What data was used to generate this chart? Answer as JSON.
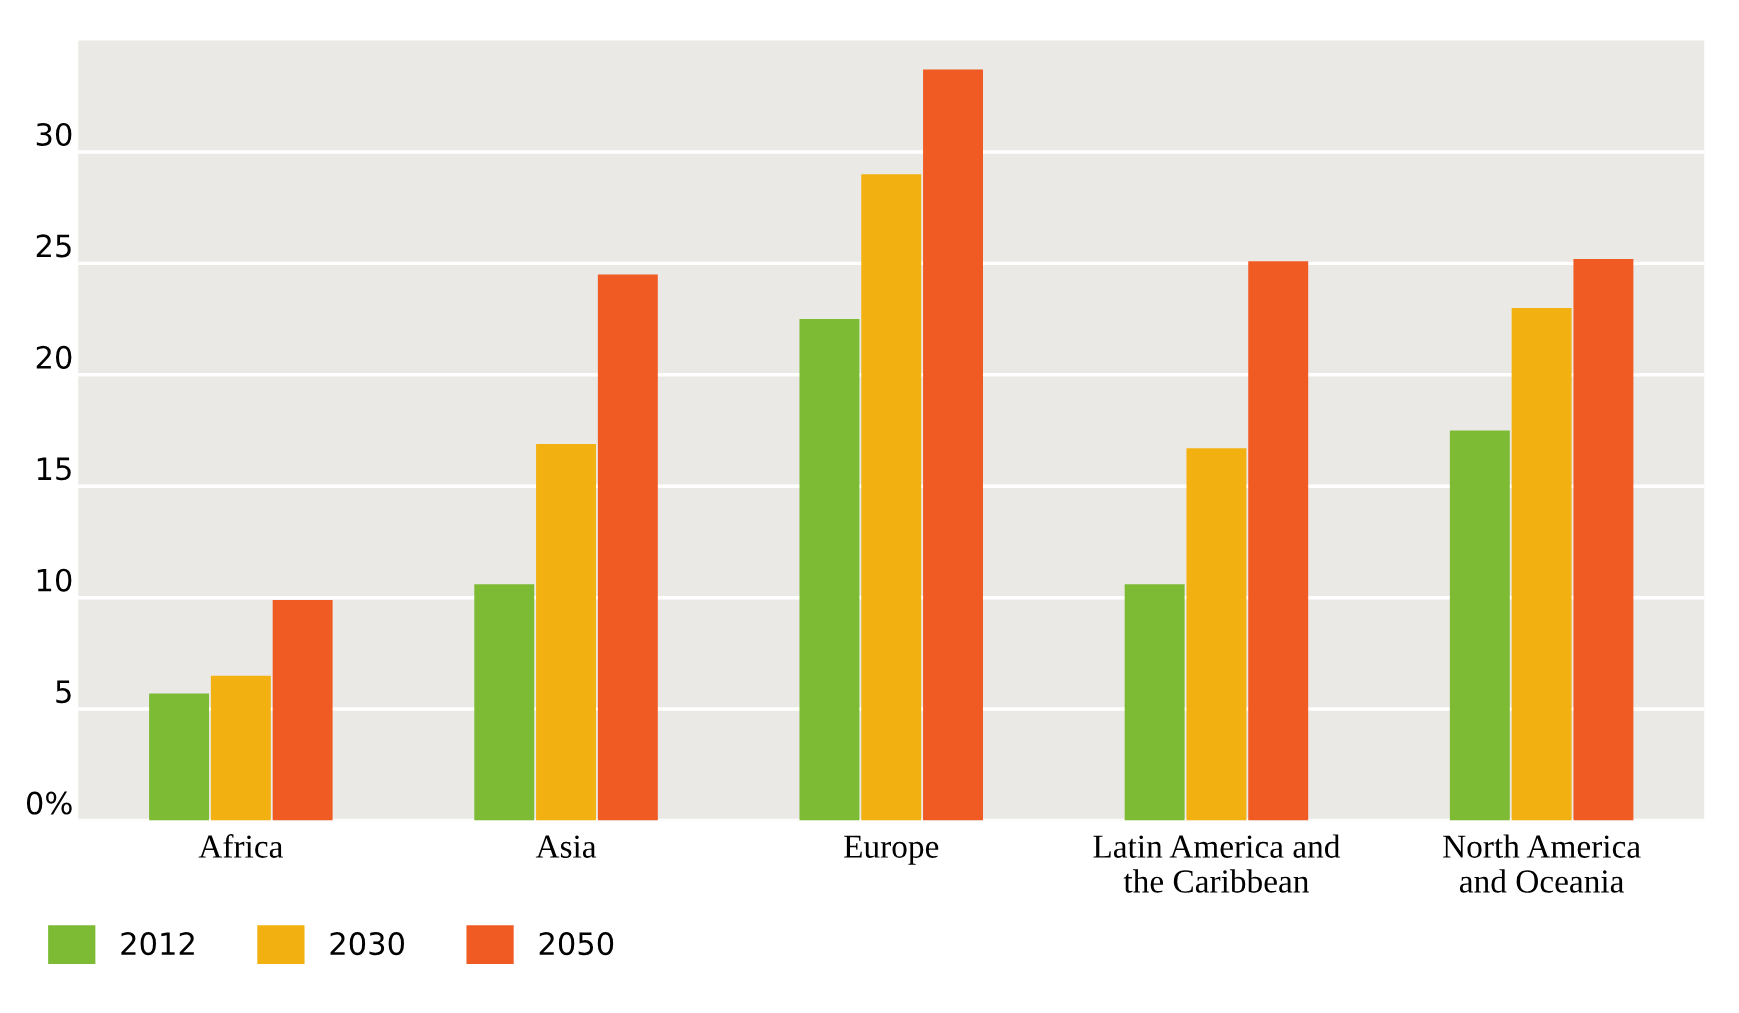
{
  "chart_data": {
    "type": "bar",
    "categories": [
      "Africa",
      "Asia",
      "Europe",
      "Latin America and\nthe Caribbean",
      "North America\nand Oceania"
    ],
    "series": [
      {
        "name": "2012",
        "color": "#7dbb35",
        "values": [
          5.7,
          10.6,
          22.5,
          10.6,
          17.5
        ]
      },
      {
        "name": "2030",
        "color": "#f2b110",
        "values": [
          6.5,
          16.9,
          29.0,
          16.7,
          23.0
        ]
      },
      {
        "name": "2050",
        "color": "#f05a23",
        "values": [
          9.9,
          24.5,
          33.7,
          25.1,
          25.2
        ]
      }
    ],
    "ylim": [
      0,
      35
    ],
    "yticks": [
      {
        "value": 0,
        "label": "0%"
      },
      5,
      10,
      15,
      20,
      25,
      30
    ],
    "grid": "y",
    "legend": "bottom left"
  }
}
